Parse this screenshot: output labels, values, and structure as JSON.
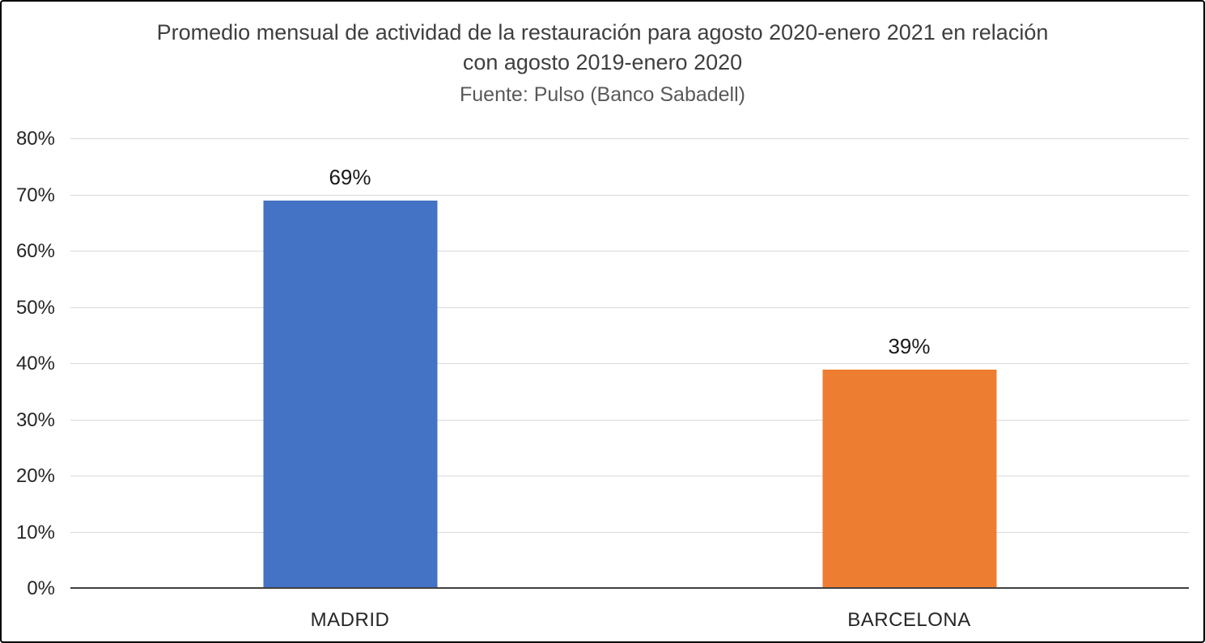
{
  "chart_data": {
    "type": "bar",
    "title": "Promedio mensual de actividad de la restauración para agosto 2020-enero 2021 en relación con agosto 2019-enero 2020",
    "subtitle": "Fuente: Pulso (Banco Sabadell)",
    "categories": [
      "MADRID",
      "BARCELONA"
    ],
    "values": [
      69,
      39
    ],
    "value_labels": [
      "69%",
      "39%"
    ],
    "bar_colors": [
      "#4472C4",
      "#ED7D31"
    ],
    "xlabel": "",
    "ylabel": "",
    "ylim": [
      0,
      80
    ],
    "ytick_step": 10,
    "ytick_labels": [
      "0%",
      "10%",
      "20%",
      "30%",
      "40%",
      "50%",
      "60%",
      "70%",
      "80%"
    ],
    "grid": "horizontal",
    "legend": "none"
  },
  "colors": {
    "grid": "#d9d9d9",
    "axis_line": "#404040",
    "title_text": "#3f3f3f",
    "subtitle_text": "#595959",
    "tick_text": "#262626",
    "frame_border": "#000000",
    "background": "#ffffff"
  }
}
